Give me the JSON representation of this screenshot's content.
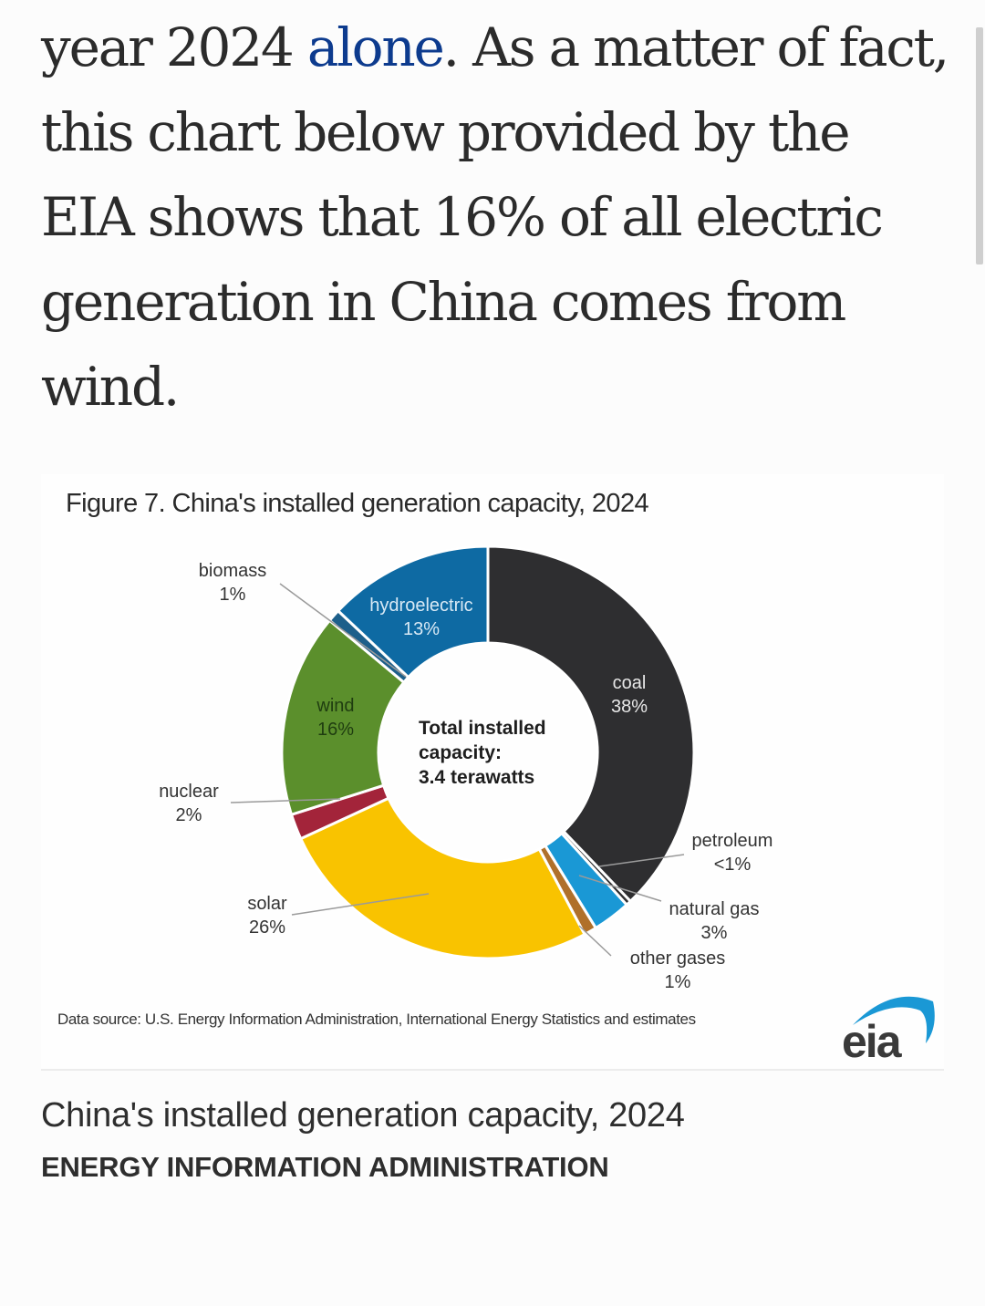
{
  "article": {
    "text_before_link": "year 2024 ",
    "link_text": "alone",
    "text_after_link": ". As a matter of fact, this chart below provided by the EIA shows that 16% of all electric generation in China comes from wind."
  },
  "figure": {
    "source": "Data source: U.S. Energy Information Administration, International Energy Statistics and estimates",
    "logo_text": "eia",
    "caption": "China's installed generation capacity, 2024",
    "credit": "ENERGY INFORMATION ADMINISTRATION"
  },
  "chart_data": {
    "type": "pie",
    "subtype": "donut",
    "title": "Figure 7. China's installed generation capacity, 2024",
    "center_label": [
      "Total installed",
      "capacity:",
      "3.4 terawatts"
    ],
    "unit": "percent",
    "slices": [
      {
        "name": "coal",
        "label": "38%",
        "value": 38,
        "color": "#2e2e30"
      },
      {
        "name": "petroleum",
        "label": "<1%",
        "value": 0.4,
        "color": "#2e2e30"
      },
      {
        "name": "natural gas",
        "label": "3%",
        "value": 3,
        "color": "#1a98d5"
      },
      {
        "name": "other gases",
        "label": "1%",
        "value": 1,
        "color": "#b0702a"
      },
      {
        "name": "solar",
        "label": "26%",
        "value": 26,
        "color": "#f9c300"
      },
      {
        "name": "nuclear",
        "label": "2%",
        "value": 2,
        "color": "#a3243a"
      },
      {
        "name": "wind",
        "label": "16%",
        "value": 16,
        "color": "#5b8f2c"
      },
      {
        "name": "biomass",
        "label": "1%",
        "value": 1,
        "color": "#1d5f8a"
      },
      {
        "name": "hydroelectric",
        "label": "13%",
        "value": 13,
        "color": "#0e6aa3"
      }
    ]
  }
}
